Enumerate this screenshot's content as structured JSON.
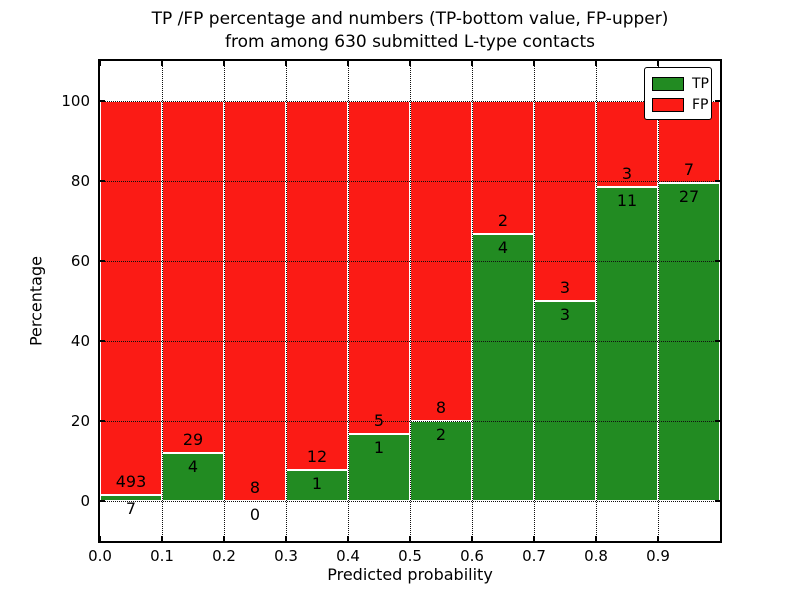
{
  "figure": {
    "title_lines": [
      "TP /FP percentage and numbers (TP-bottom value, FP-upper)",
      "from among 630 submitted L-type contacts"
    ]
  },
  "chart_data": {
    "type": "bar",
    "stacked": true,
    "normalized_to_percent": true,
    "title": "TP /FP percentage and numbers (TP-bottom value, FP-upper)\nfrom among 630 submitted L-type contacts",
    "xlabel": "Predicted probability",
    "ylabel": "Percentage",
    "total_contacts": 630,
    "bin_starts": [
      0.0,
      0.1,
      0.2,
      0.3,
      0.4,
      0.5,
      0.6,
      0.7,
      0.8,
      0.9
    ],
    "bin_width": 0.1,
    "series": [
      {
        "name": "TP",
        "color": "#228b22",
        "counts": [
          7,
          4,
          0,
          1,
          1,
          2,
          4,
          3,
          11,
          27
        ]
      },
      {
        "name": "FP",
        "color": "#fb1b15",
        "counts": [
          493,
          29,
          8,
          12,
          5,
          8,
          2,
          3,
          3,
          7
        ]
      }
    ],
    "tp_percent_of_bin": [
      1.4,
      12.12,
      0.0,
      7.69,
      16.67,
      20.0,
      66.67,
      50.0,
      78.57,
      79.41
    ],
    "x_tick_labels": [
      "0.0",
      "0.1",
      "0.2",
      "0.3",
      "0.4",
      "0.5",
      "0.6",
      "0.7",
      "0.8",
      "0.9"
    ],
    "y_tick_values": [
      0,
      20,
      40,
      60,
      80,
      100
    ],
    "xlim": [
      0.0,
      1.0
    ],
    "ylim": [
      -10,
      110
    ],
    "grid": "dotted black, on top of bars",
    "bar_edge_color": "#ffffff",
    "legend_position": "upper right"
  },
  "legend": {
    "entries": [
      {
        "label": "TP",
        "color": "#228b22"
      },
      {
        "label": "FP",
        "color": "#fb1b15"
      }
    ]
  }
}
